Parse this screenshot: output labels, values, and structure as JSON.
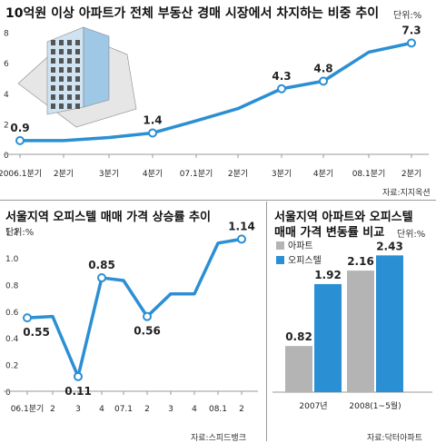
{
  "chart_data": [
    {
      "type": "line",
      "title": "10억원 이상 아파트가 전체 부동산 경매 시장에서 차지하는 비중 추이",
      "unit": "단위:%",
      "source": "자료:지지옥션",
      "categories": [
        "2006.1분기",
        "2분기",
        "3분기",
        "4분기",
        "07.1분기",
        "2분기",
        "3분기",
        "4분기",
        "08.1분기",
        "2분기"
      ],
      "series": [
        {
          "values": [
            0.9,
            0.9,
            1.1,
            1.4,
            2.2,
            3.0,
            4.3,
            4.8,
            6.7,
            7.3
          ]
        }
      ],
      "data_labels": [
        {
          "index": 0,
          "text": "0.9"
        },
        {
          "index": 3,
          "text": "1.4"
        },
        {
          "index": 6,
          "text": "4.3"
        },
        {
          "index": 7,
          "text": "4.8"
        },
        {
          "index": 9,
          "text": "7.3"
        }
      ],
      "yticks": [
        "0",
        "2",
        "4",
        "6",
        "8"
      ],
      "ylim": [
        0,
        8
      ],
      "grid": false,
      "color": "#2b8fd4"
    },
    {
      "type": "line",
      "title": "서울지역 오피스텔 매매 가격 상승률 추이",
      "unit": "단위:%",
      "source": "자료:스피드뱅크",
      "categories": [
        "06.1분기",
        "2",
        "3",
        "4",
        "07.1",
        "2",
        "3",
        "4",
        "08.1",
        "2"
      ],
      "series": [
        {
          "values": [
            0.55,
            0.56,
            0.11,
            0.85,
            0.83,
            0.56,
            0.73,
            0.73,
            1.11,
            1.14
          ]
        }
      ],
      "data_labels": [
        {
          "index": 0,
          "text": "0.55"
        },
        {
          "index": 2,
          "text": "0.11"
        },
        {
          "index": 3,
          "text": "0.85"
        },
        {
          "index": 5,
          "text": "0.56"
        },
        {
          "index": 9,
          "text": "1.14"
        }
      ],
      "yticks": [
        "0",
        "0.2",
        "0.4",
        "0.6",
        "0.8",
        "1.0",
        "1.2"
      ],
      "ylim": [
        0,
        1.2
      ],
      "grid": false,
      "color": "#2b8fd4"
    },
    {
      "type": "bar",
      "title_lines": [
        "서울지역 아파트와 오피스텔",
        "매매 가격 변동률 비교"
      ],
      "unit": "단위:%",
      "source": "자료:닥터아파트",
      "categories": [
        "2007년",
        "2008(1~5월)"
      ],
      "series": [
        {
          "name": "아파트",
          "values": [
            0.82,
            2.16
          ],
          "color": "#b4b4b4"
        },
        {
          "name": "오피스텔",
          "values": [
            1.92,
            2.43
          ],
          "color": "#2b8fd4"
        }
      ],
      "ylim": [
        0,
        2.6
      ],
      "legend": "top-left"
    }
  ]
}
